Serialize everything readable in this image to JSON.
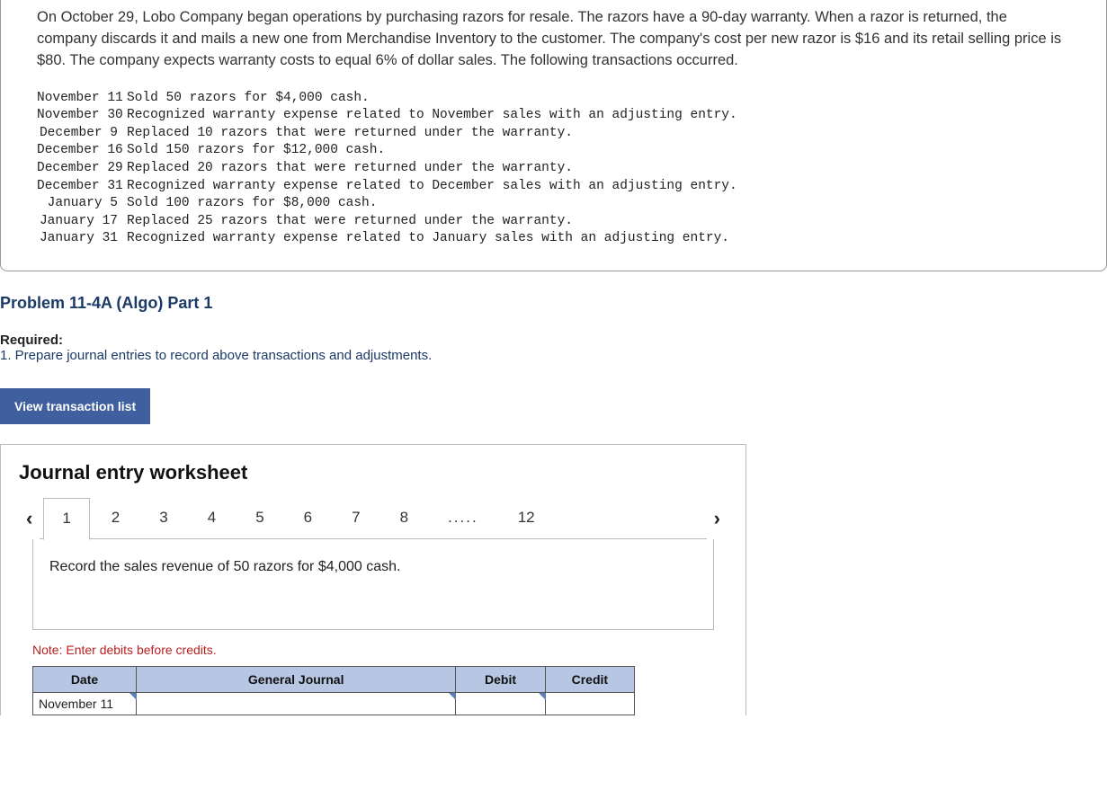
{
  "problem": {
    "description": "On October 29, Lobo Company began operations by purchasing razors for resale. The razors have a 90-day warranty. When a razor is returned, the company discards it and mails a new one from Merchandise Inventory to the customer. The company's cost per new razor is $16 and its retail selling price is $80. The company expects warranty costs to equal 6% of dollar sales. The following transactions occurred.",
    "transactions": [
      {
        "date": "November 11",
        "desc": "Sold 50 razors for $4,000 cash."
      },
      {
        "date": "November 30",
        "desc": "Recognized warranty expense related to November sales with an adjusting entry."
      },
      {
        "date": "December 9",
        "desc": "Replaced 10 razors that were returned under the warranty."
      },
      {
        "date": "December 16",
        "desc": "Sold 150 razors for $12,000 cash."
      },
      {
        "date": "December 29",
        "desc": "Replaced 20 razors that were returned under the warranty."
      },
      {
        "date": "December 31",
        "desc": "Recognized warranty expense related to December sales with an adjusting entry."
      },
      {
        "date": "January 5",
        "desc": "Sold 100 razors for $8,000 cash."
      },
      {
        "date": "January 17",
        "desc": "Replaced 25 razors that were returned under the warranty."
      },
      {
        "date": "January 31",
        "desc": "Recognized warranty expense related to January sales with an adjusting entry."
      }
    ]
  },
  "section": {
    "title": "Problem 11-4A (Algo) Part 1",
    "required_label": "Required:",
    "required_text": "1. Prepare journal entries to record above transactions and adjustments."
  },
  "buttons": {
    "view_list": "View transaction list"
  },
  "worksheet": {
    "title": "Journal entry worksheet",
    "tabs": [
      "1",
      "2",
      "3",
      "4",
      "5",
      "6",
      "7",
      "8",
      ".....",
      "12"
    ],
    "active_tab": "1",
    "instruction": "Record the sales revenue of 50 razors for $4,000 cash.",
    "note": "Note: Enter debits before credits.",
    "columns": {
      "date": "Date",
      "general_journal": "General Journal",
      "debit": "Debit",
      "credit": "Credit"
    },
    "rows": [
      {
        "date": "November 11",
        "account": "",
        "debit": "",
        "credit": ""
      }
    ]
  }
}
